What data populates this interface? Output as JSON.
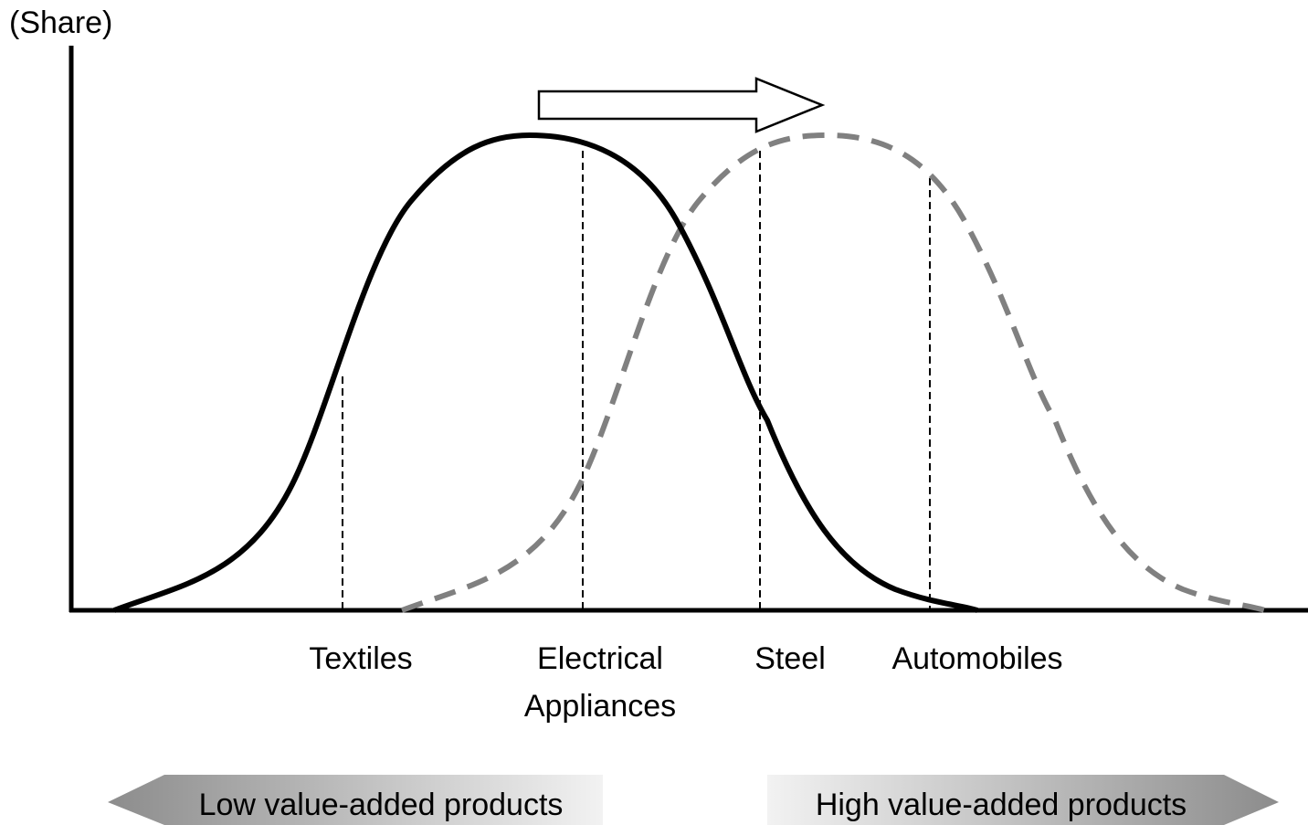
{
  "y_axis_label": "(Share)",
  "categories": [
    {
      "lines": [
        "Textiles"
      ]
    },
    {
      "lines": [
        "Electrical",
        "Appliances"
      ]
    },
    {
      "lines": [
        "Steel"
      ]
    },
    {
      "lines": [
        "Automobiles"
      ]
    }
  ],
  "bands": {
    "low": "Low value-added products",
    "high": "High value-added products"
  }
}
